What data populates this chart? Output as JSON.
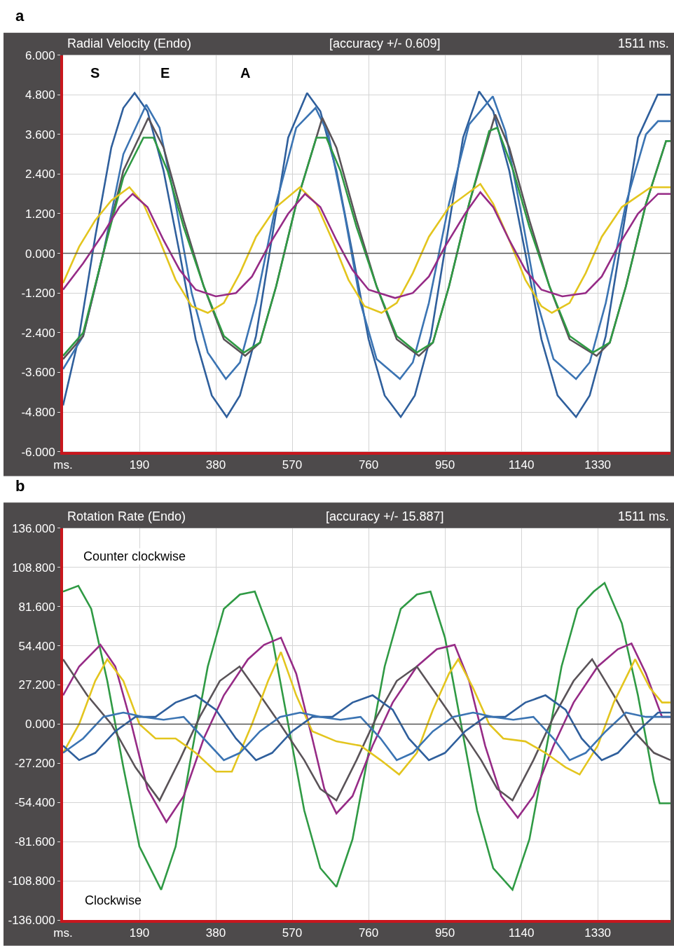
{
  "chart_data": [
    {
      "type": "line",
      "title": "Radial Velocity (Endo)",
      "subtitle": "[accuracy +/- 0.609]",
      "annotations": [
        "1511 ms.",
        "a",
        "S",
        "E",
        "A"
      ],
      "xlim": [
        0,
        1511
      ],
      "xticks": [
        {
          "value": 0,
          "label": "ms."
        },
        190,
        380,
        570,
        760,
        950,
        1140,
        1330
      ],
      "ylim": [
        -6,
        6
      ],
      "yticks": [
        {
          "value": -6,
          "label": "-6.000"
        },
        {
          "value": -4.8,
          "label": "-4.800"
        },
        {
          "value": -3.6,
          "label": "-3.600"
        },
        {
          "value": -2.4,
          "label": "-2.400"
        },
        {
          "value": -1.2,
          "label": "-1.200"
        },
        {
          "value": 0,
          "label": "0.000"
        },
        {
          "value": 1.2,
          "label": "1.200"
        },
        {
          "value": 2.4,
          "label": "2.400"
        },
        {
          "value": 3.6,
          "label": "3.600"
        },
        {
          "value": 4.8,
          "label": "4.800"
        },
        {
          "value": 6,
          "label": "6.000"
        }
      ],
      "grid": true,
      "marker": "none",
      "line_style": "solid",
      "ref_lines": [
        {
          "axis": "y",
          "value": 0,
          "color": "#555555"
        }
      ],
      "series": [
        {
          "color": "#2f5f9c",
          "x": [
            0,
            40,
            80,
            120,
            150,
            178,
            210,
            250,
            290,
            330,
            370,
            407,
            440,
            480,
            520,
            560,
            607,
            640,
            680,
            720,
            760,
            800,
            840,
            875,
            915,
            955,
            995,
            1035,
            1070,
            1110,
            1150,
            1190,
            1230,
            1276,
            1310,
            1350,
            1390,
            1430,
            1479,
            1511
          ],
          "values": [
            -4.6,
            -2.5,
            0.5,
            3.2,
            4.4,
            4.85,
            4.3,
            2.5,
            0,
            -2.6,
            -4.3,
            -4.95,
            -4.3,
            -2.5,
            0.5,
            3.5,
            4.85,
            4.3,
            2.5,
            0,
            -2.6,
            -4.3,
            -4.95,
            -4.3,
            -2.5,
            0.5,
            3.5,
            4.9,
            4.3,
            2.5,
            0,
            -2.6,
            -4.3,
            -4.95,
            -4.3,
            -2.5,
            0.5,
            3.5,
            4.8,
            4.8
          ]
        },
        {
          "color": "#3b74b3",
          "x": [
            0,
            50,
            100,
            150,
            207,
            240,
            280,
            320,
            360,
            405,
            440,
            480,
            530,
            580,
            628,
            660,
            700,
            740,
            780,
            838,
            870,
            910,
            960,
            1010,
            1069,
            1100,
            1140,
            1180,
            1220,
            1276,
            1310,
            1350,
            1400,
            1450,
            1480,
            1511
          ],
          "values": [
            -3.5,
            -2.5,
            0,
            3.0,
            4.5,
            3.8,
            1.5,
            -1.2,
            -3.0,
            -3.8,
            -3.3,
            -1.5,
            1.5,
            3.8,
            4.4,
            3.6,
            1.2,
            -1.5,
            -3.2,
            -3.8,
            -3.3,
            -1.5,
            1.5,
            3.9,
            4.75,
            3.7,
            1.2,
            -1.5,
            -3.2,
            -3.8,
            -3.3,
            -1.5,
            1.5,
            3.6,
            4.0,
            4.0
          ]
        },
        {
          "color": "#5a5358",
          "x": [
            0,
            50,
            100,
            150,
            212,
            250,
            300,
            350,
            400,
            453,
            490,
            530,
            580,
            645,
            680,
            730,
            780,
            830,
            885,
            920,
            960,
            1010,
            1075,
            1110,
            1160,
            1210,
            1260,
            1327,
            1360,
            1400,
            1450,
            1500,
            1511
          ],
          "values": [
            -3.2,
            -2.5,
            0,
            2.5,
            4.1,
            3.2,
            1.0,
            -1.0,
            -2.6,
            -3.1,
            -2.7,
            -1.0,
            1.5,
            4.1,
            3.2,
            1.0,
            -1.0,
            -2.6,
            -3.1,
            -2.7,
            -1.0,
            1.5,
            4.2,
            3.2,
            1.0,
            -1.0,
            -2.6,
            -3.1,
            -2.7,
            -1.0,
            1.5,
            3.4,
            3.4
          ]
        },
        {
          "color": "#2f9a44",
          "x": [
            0,
            50,
            100,
            150,
            200,
            225,
            260,
            300,
            350,
            400,
            450,
            490,
            530,
            580,
            630,
            655,
            690,
            730,
            780,
            830,
            880,
            920,
            960,
            1010,
            1060,
            1080,
            1120,
            1160,
            1210,
            1260,
            1318,
            1360,
            1400,
            1450,
            1500,
            1511
          ],
          "values": [
            -3.1,
            -2.4,
            0,
            2.3,
            3.5,
            3.5,
            2.5,
            0.8,
            -1.0,
            -2.5,
            -3.0,
            -2.7,
            -1.0,
            1.5,
            3.5,
            3.5,
            2.5,
            0.8,
            -1.0,
            -2.5,
            -3.0,
            -2.7,
            -1.0,
            1.5,
            3.7,
            3.8,
            2.5,
            0.8,
            -1.0,
            -2.5,
            -3.0,
            -2.7,
            -1.0,
            1.5,
            3.4,
            3.4
          ]
        },
        {
          "color": "#e3c51e",
          "x": [
            0,
            40,
            80,
            120,
            165,
            200,
            240,
            280,
            320,
            360,
            400,
            440,
            480,
            530,
            589,
            630,
            670,
            710,
            750,
            792,
            830,
            870,
            910,
            960,
            1038,
            1070,
            1110,
            1150,
            1190,
            1216,
            1260,
            1300,
            1340,
            1390,
            1462,
            1511
          ],
          "values": [
            -0.9,
            0.2,
            1.0,
            1.6,
            2.0,
            1.5,
            0.4,
            -0.8,
            -1.6,
            -1.8,
            -1.5,
            -0.6,
            0.5,
            1.4,
            2.0,
            1.5,
            0.4,
            -0.8,
            -1.6,
            -1.8,
            -1.5,
            -0.6,
            0.5,
            1.4,
            2.1,
            1.5,
            0.4,
            -0.8,
            -1.6,
            -1.8,
            -1.5,
            -0.6,
            0.5,
            1.4,
            2.0,
            2.0
          ]
        },
        {
          "color": "#962b86",
          "x": [
            0,
            50,
            100,
            140,
            173,
            210,
            250,
            290,
            330,
            380,
            430,
            470,
            510,
            560,
            602,
            640,
            680,
            720,
            760,
            826,
            870,
            910,
            950,
            1000,
            1038,
            1070,
            1110,
            1150,
            1190,
            1242,
            1300,
            1340,
            1380,
            1430,
            1480,
            1511
          ],
          "values": [
            -1.1,
            -0.3,
            0.6,
            1.4,
            1.8,
            1.4,
            0.4,
            -0.5,
            -1.1,
            -1.3,
            -1.2,
            -0.7,
            0.2,
            1.2,
            1.8,
            1.4,
            0.4,
            -0.5,
            -1.1,
            -1.35,
            -1.2,
            -0.7,
            0.2,
            1.2,
            1.85,
            1.4,
            0.4,
            -0.5,
            -1.1,
            -1.3,
            -1.2,
            -0.7,
            0.2,
            1.2,
            1.8,
            1.8
          ]
        }
      ]
    },
    {
      "type": "line",
      "title": "Rotation Rate (Endo)",
      "subtitle": "[accuracy +/- 15.887]",
      "annotations": [
        "1511 ms.",
        "b",
        "Counter clockwise",
        "Clockwise"
      ],
      "xlim": [
        0,
        1511
      ],
      "xticks": [
        {
          "value": 0,
          "label": "ms."
        },
        190,
        380,
        570,
        760,
        950,
        1140,
        1330
      ],
      "ylim": [
        -136,
        136
      ],
      "yticks": [
        {
          "value": -136,
          "label": "-136.000"
        },
        {
          "value": -108.8,
          "label": "-108.800"
        },
        {
          "value": -81.6,
          "label": "-81.600"
        },
        {
          "value": -54.4,
          "label": "-54.400"
        },
        {
          "value": -27.2,
          "label": "-27.200"
        },
        {
          "value": 0,
          "label": "0.000"
        },
        {
          "value": 27.2,
          "label": "27.200"
        },
        {
          "value": 54.4,
          "label": "54.400"
        },
        {
          "value": 81.6,
          "label": "81.600"
        },
        {
          "value": 108.8,
          "label": "108.800"
        },
        {
          "value": 136,
          "label": "136.000"
        }
      ],
      "grid": true,
      "marker": "none",
      "line_style": "solid",
      "ref_lines": [
        {
          "axis": "y",
          "value": 0,
          "color": "#555555"
        }
      ],
      "series": [
        {
          "color": "#2f9a44",
          "x": [
            0,
            38,
            70,
            110,
            150,
            190,
            244,
            280,
            320,
            360,
            400,
            440,
            477,
            520,
            560,
            600,
            640,
            680,
            720,
            760,
            800,
            840,
            880,
            914,
            950,
            990,
            1030,
            1070,
            1118,
            1160,
            1200,
            1240,
            1280,
            1320,
            1347,
            1390,
            1430,
            1470,
            1484,
            1511
          ],
          "values": [
            92,
            96,
            80,
            30,
            -30,
            -85,
            -115,
            -85,
            -20,
            40,
            80,
            90,
            92,
            60,
            0,
            -60,
            -100,
            -113,
            -80,
            -20,
            40,
            80,
            90,
            92,
            60,
            0,
            -60,
            -100,
            -115,
            -80,
            -20,
            40,
            80,
            92,
            98,
            70,
            20,
            -40,
            -55,
            -55
          ]
        },
        {
          "color": "#962b86",
          "x": [
            0,
            40,
            93,
            130,
            170,
            210,
            257,
            300,
            350,
            400,
            460,
            500,
            542,
            580,
            620,
            650,
            680,
            720,
            770,
            820,
            880,
            930,
            974,
            1010,
            1050,
            1090,
            1131,
            1170,
            1220,
            1270,
            1330,
            1380,
            1414,
            1450,
            1490,
            1511
          ],
          "values": [
            20,
            40,
            55,
            40,
            0,
            -45,
            -68,
            -50,
            -10,
            20,
            45,
            55,
            60,
            35,
            -10,
            -45,
            -62,
            -50,
            -15,
            15,
            40,
            52,
            55,
            30,
            -15,
            -50,
            -65,
            -50,
            -15,
            15,
            40,
            52,
            56,
            35,
            5,
            5
          ]
        },
        {
          "color": "#5a5358",
          "x": [
            0,
            60,
            120,
            180,
            240,
            290,
            340,
            390,
            439,
            490,
            540,
            600,
            640,
            680,
            730,
            780,
            830,
            880,
            930,
            980,
            1040,
            1080,
            1118,
            1170,
            1220,
            1270,
            1316,
            1370,
            1420,
            1470,
            1511
          ],
          "values": [
            45,
            20,
            0,
            -30,
            -53,
            -25,
            5,
            30,
            40,
            20,
            0,
            -25,
            -45,
            -53,
            -25,
            5,
            30,
            40,
            20,
            0,
            -25,
            -45,
            -53,
            -25,
            5,
            30,
            45,
            20,
            -5,
            -20,
            -25
          ]
        },
        {
          "color": "#e3c51e",
          "x": [
            0,
            40,
            80,
            110,
            150,
            190,
            230,
            280,
            330,
            380,
            420,
            470,
            510,
            542,
            580,
            620,
            680,
            740,
            790,
            836,
            880,
            920,
            960,
            983,
            1020,
            1060,
            1095,
            1150,
            1200,
            1250,
            1285,
            1330,
            1370,
            1423,
            1460,
            1490,
            1511
          ],
          "values": [
            -20,
            0,
            30,
            45,
            30,
            0,
            -10,
            -10,
            -20,
            -33,
            -33,
            0,
            30,
            50,
            20,
            -5,
            -12,
            -15,
            -25,
            -35,
            -20,
            10,
            35,
            45,
            25,
            0,
            -10,
            -12,
            -20,
            -30,
            -35,
            -15,
            15,
            45,
            25,
            15,
            15
          ]
        },
        {
          "color": "#2f5f9c",
          "x": [
            0,
            40,
            80,
            130,
            180,
            230,
            280,
            330,
            380,
            430,
            480,
            520,
            570,
            620,
            670,
            720,
            770,
            820,
            860,
            910,
            950,
            1000,
            1050,
            1100,
            1150,
            1200,
            1250,
            1290,
            1340,
            1380,
            1430,
            1480,
            1511
          ],
          "values": [
            -15,
            -25,
            -20,
            -5,
            5,
            5,
            15,
            20,
            10,
            -10,
            -25,
            -20,
            -5,
            5,
            5,
            15,
            20,
            10,
            -10,
            -25,
            -20,
            -5,
            5,
            5,
            15,
            20,
            10,
            -10,
            -25,
            -20,
            -5,
            8,
            8
          ]
        },
        {
          "color": "#3b74b3",
          "x": [
            0,
            50,
            100,
            150,
            200,
            250,
            300,
            350,
            400,
            440,
            490,
            540,
            590,
            640,
            690,
            740,
            790,
            830,
            870,
            920,
            970,
            1020,
            1070,
            1120,
            1170,
            1220,
            1260,
            1300,
            1350,
            1400,
            1450,
            1511
          ],
          "values": [
            -20,
            -10,
            5,
            8,
            5,
            3,
            5,
            -10,
            -25,
            -20,
            -5,
            5,
            8,
            5,
            3,
            5,
            -10,
            -25,
            -20,
            -5,
            5,
            8,
            5,
            3,
            5,
            -10,
            -25,
            -20,
            -5,
            8,
            5,
            5
          ]
        }
      ]
    }
  ]
}
